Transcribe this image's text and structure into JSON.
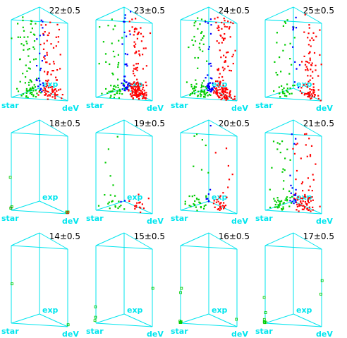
{
  "figure": {
    "colors": {
      "background": "#ffffff",
      "prism_edges": "#00e5ee",
      "axis_label": "#00e5ee",
      "mag_label": "#000000",
      "star_points": "#00cc00",
      "exp_points": "#0000ff",
      "dev_points": "#ff0000"
    }
  },
  "chart_data": {
    "type": "scatter",
    "title": "",
    "description_free": true,
    "layout": "3 rows x 4 columns of 3D triangular-prism scatter plots",
    "vertex_labels": [
      "star",
      "exp",
      "deV"
    ],
    "panels": [
      {
        "mag": "22±0.5",
        "row": 0,
        "col": 0,
        "density": 0.75,
        "green": 0.42,
        "blue": 0.12,
        "concentration": 0.45,
        "spread": 0.7
      },
      {
        "mag": "23±0.5",
        "row": 0,
        "col": 1,
        "density": 0.95,
        "green": 0.22,
        "blue": 0.15,
        "concentration": 0.55,
        "spread": 0.45
      },
      {
        "mag": "24±0.5",
        "row": 0,
        "col": 2,
        "density": 1.0,
        "green": 0.3,
        "blue": 0.15,
        "concentration": 0.5,
        "spread": 0.45
      },
      {
        "mag": "25±0.5",
        "row": 0,
        "col": 3,
        "density": 0.55,
        "green": 0.3,
        "blue": 0.08,
        "concentration": 0.4,
        "spread": 0.25
      },
      {
        "mag": "18±0.5",
        "row": 1,
        "col": 0,
        "density": 0.05,
        "green": 0.7,
        "blue": 0.0,
        "concentration": 0.9,
        "spread": 0.5
      },
      {
        "mag": "19±0.5",
        "row": 1,
        "col": 1,
        "density": 0.15,
        "green": 0.55,
        "blue": 0.05,
        "concentration": 0.85,
        "spread": 0.5
      },
      {
        "mag": "20±0.5",
        "row": 1,
        "col": 2,
        "density": 0.28,
        "green": 0.45,
        "blue": 0.1,
        "concentration": 0.8,
        "spread": 0.5
      },
      {
        "mag": "21±0.5",
        "row": 1,
        "col": 3,
        "density": 0.55,
        "green": 0.35,
        "blue": 0.12,
        "concentration": 0.6,
        "spread": 0.7
      },
      {
        "mag": "14±0.5",
        "row": 2,
        "col": 0,
        "density": 0.0,
        "green": 1.0,
        "blue": 0.0,
        "concentration": 1.0,
        "spread": 0.5
      },
      {
        "mag": "15±0.5",
        "row": 2,
        "col": 1,
        "density": 0.02,
        "green": 1.0,
        "blue": 0.0,
        "concentration": 1.0,
        "spread": 0.5
      },
      {
        "mag": "16±0.5",
        "row": 2,
        "col": 2,
        "density": 0.04,
        "green": 1.0,
        "blue": 0.0,
        "concentration": 1.0,
        "spread": 0.5
      },
      {
        "mag": "17±0.5",
        "row": 2,
        "col": 3,
        "density": 0.05,
        "green": 1.0,
        "blue": 0.0,
        "concentration": 1.0,
        "spread": 0.5
      }
    ]
  }
}
